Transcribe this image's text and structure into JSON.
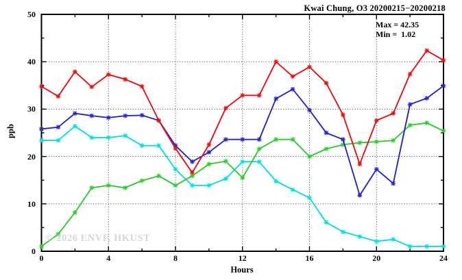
{
  "title": "Kwai Chung, O3 20200215−20200218",
  "annotation": {
    "max_label": "Max = 42.35",
    "min_label": "Min =  1.02"
  },
  "watermark": "© 2026 ENVF, HKUST",
  "chart_data": {
    "type": "line",
    "title": "Kwai Chung, O3 20200215−20200218",
    "xlabel": "Hours",
    "ylabel": "ppb",
    "xlim": [
      0,
      24
    ],
    "ylim": [
      0,
      50
    ],
    "x_ticks": [
      0,
      4,
      8,
      12,
      16,
      20,
      24
    ],
    "y_ticks": [
      0,
      10,
      20,
      30,
      40,
      50
    ],
    "x_minor_step": 2,
    "y_minor_step": 5,
    "grid": true,
    "legend": "none",
    "max": 42.35,
    "min": 1.02,
    "x": [
      0,
      1,
      2,
      3,
      4,
      5,
      6,
      7,
      8,
      9,
      10,
      11,
      12,
      13,
      14,
      15,
      16,
      17,
      18,
      19,
      20,
      21,
      22,
      23,
      24
    ],
    "series": [
      {
        "name": "cyan-line",
        "color": "#00e2e2",
        "values": [
          23.4,
          23.4,
          26.4,
          24.0,
          24.0,
          24.4,
          22.3,
          22.3,
          17.3,
          13.9,
          13.9,
          15.3,
          18.9,
          18.9,
          14.8,
          13.0,
          11.3,
          6.1,
          4.1,
          3.1,
          2.1,
          2.5,
          1.02,
          1.02,
          1.02
        ]
      },
      {
        "name": "green-line",
        "color": "#2ecc2e",
        "values": [
          1.02,
          3.6,
          8.2,
          13.4,
          13.9,
          13.4,
          14.9,
          15.9,
          13.9,
          15.9,
          18.4,
          19.0,
          15.5,
          21.6,
          23.6,
          23.6,
          20.0,
          21.6,
          22.5,
          22.9,
          23.1,
          23.4,
          26.6,
          27.1,
          25.4
        ]
      },
      {
        "name": "blue-line",
        "color": "#2525cf",
        "values": [
          25.8,
          26.2,
          29.1,
          28.6,
          28.2,
          28.6,
          28.7,
          27.6,
          22.3,
          18.9,
          20.9,
          23.6,
          23.6,
          23.6,
          32.2,
          34.2,
          29.8,
          25.0,
          23.6,
          11.8,
          17.3,
          14.3,
          31.0,
          32.3,
          34.9
        ]
      },
      {
        "name": "red-line",
        "color": "#ea1010",
        "values": [
          34.8,
          32.7,
          37.9,
          34.7,
          37.3,
          36.3,
          34.8,
          27.6,
          21.7,
          16.6,
          22.5,
          30.2,
          32.9,
          32.9,
          40.0,
          36.9,
          38.9,
          35.5,
          28.8,
          18.4,
          27.6,
          29.1,
          37.4,
          42.35,
          40.3
        ]
      }
    ]
  }
}
